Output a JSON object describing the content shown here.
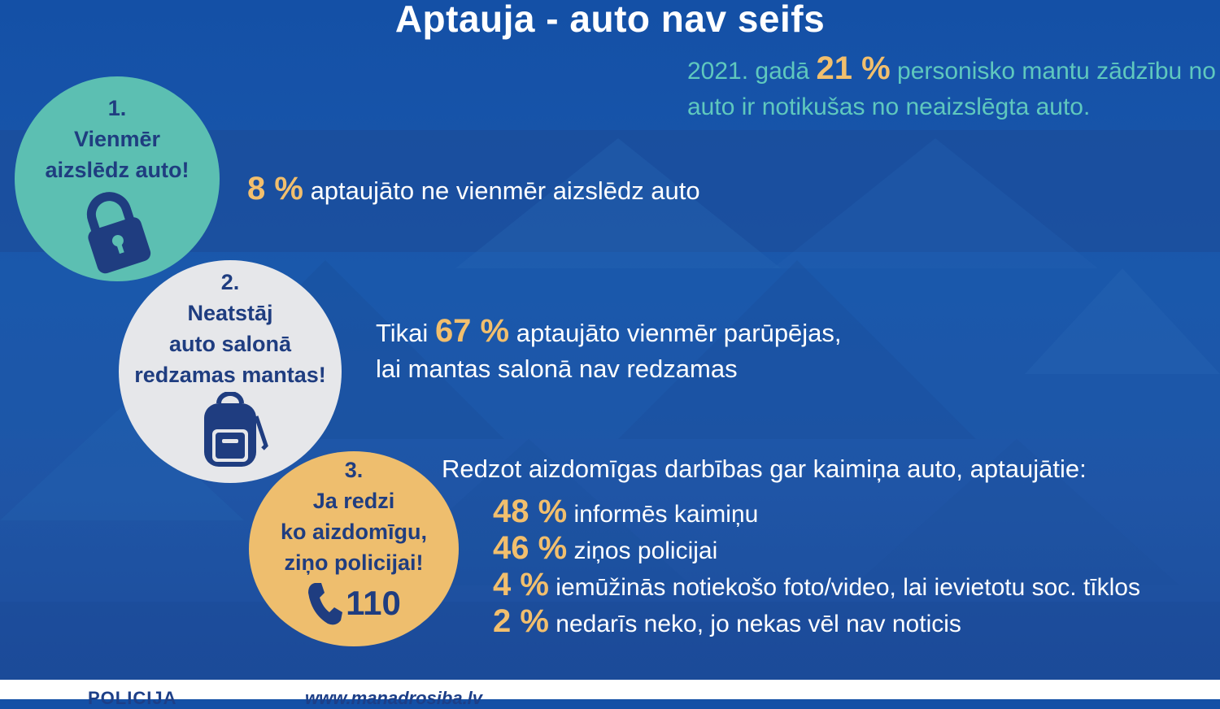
{
  "title": "Aptauja - auto nav seifs",
  "top_stat": {
    "year_text": "2021. gadā",
    "percent": "21 %",
    "rest": "personisko mantu zādzību no auto ir notikušas no neaizslēgta auto."
  },
  "tips": [
    {
      "num": "1.",
      "line1": "Vienmēr",
      "line2": "aizslēdz auto!",
      "icon": "lock-icon",
      "color": "#5cbfb2"
    },
    {
      "num": "2.",
      "line1": "Neatstāj",
      "line2": "auto salonā",
      "line3": "redzamas mantas!",
      "icon": "backpack-icon",
      "color": "#e6e7ea"
    },
    {
      "num": "3.",
      "line1": "Ja redzi",
      "line2": "ko aizdomīgu,",
      "line3": "ziņo policijai!",
      "icon": "phone-icon",
      "phone": "110",
      "color": "#eebe6e"
    }
  ],
  "stat1": {
    "percent": "8 %",
    "text": "aptaujāto ne vienmēr aizslēdz auto"
  },
  "stat2": {
    "prefix": "Tikai",
    "percent": "67 %",
    "text1": "aptaujāto vienmēr parūpējas,",
    "text2": "lai mantas salonā nav redzamas"
  },
  "stat3": {
    "header": "Redzot aizdomīgas darbības gar kaimiņa auto, aptaujātie:",
    "items": [
      {
        "percent": "48 %",
        "text": "informēs kaimiņu"
      },
      {
        "percent": "46 %",
        "text": "ziņos policijai"
      },
      {
        "percent": "4 %",
        "text": "iemūžinās notiekošo foto/video, lai ievietotu soc. tīklos"
      },
      {
        "percent": "2 %",
        "text": "nedarīs neko, jo nekas vēl nav noticis"
      }
    ]
  },
  "colors": {
    "accent": "#f2bf6d",
    "teal": "#5cbfb2",
    "background": "#1a58ad"
  },
  "footer": {
    "logo": "POLICIJA",
    "url": "www.manadrosiba.lv"
  }
}
